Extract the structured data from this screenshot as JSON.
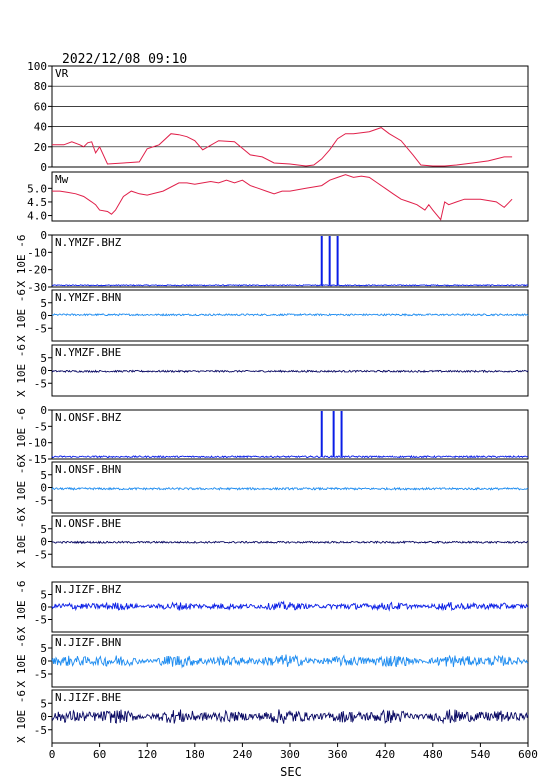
{
  "header": {
    "datetime": "2022/12/08 09:10"
  },
  "xaxis": {
    "label": "SEC",
    "range": [
      0,
      600
    ],
    "ticks": [
      0,
      60,
      120,
      180,
      240,
      300,
      360,
      420,
      480,
      540,
      600
    ]
  },
  "colors": {
    "vr_mw": "#e0204a",
    "bhz": "#0a1ee6",
    "bhn": "#1e8cf0",
    "bhe": "#0a0a64",
    "frame": "#000000"
  },
  "chart_data": [
    {
      "type": "line",
      "id": "vr",
      "label": "VR",
      "ylim": [
        0,
        100
      ],
      "yticks": [
        0,
        20,
        40,
        60,
        80,
        100
      ],
      "grid": true,
      "x": [
        0,
        15,
        25,
        35,
        40,
        45,
        50,
        55,
        60,
        70,
        90,
        110,
        120,
        135,
        150,
        160,
        170,
        180,
        190,
        210,
        230,
        250,
        265,
        280,
        300,
        320,
        330,
        340,
        350,
        360,
        370,
        380,
        400,
        415,
        425,
        440,
        455,
        465,
        480,
        495,
        510,
        530,
        550,
        570,
        580
      ],
      "y": [
        22,
        22,
        25,
        22,
        20,
        24,
        25,
        14,
        20,
        3,
        4,
        5,
        18,
        22,
        33,
        32,
        30,
        26,
        17,
        26,
        25,
        12,
        10,
        4,
        3,
        1,
        2,
        8,
        17,
        28,
        33,
        33,
        35,
        39,
        33,
        26,
        12,
        2,
        1,
        1,
        2,
        4,
        6,
        10,
        10
      ]
    },
    {
      "type": "line",
      "id": "mw",
      "label": "Mw",
      "ylim": [
        3.8,
        5.6
      ],
      "yticks": [
        4.0,
        4.5,
        5.0
      ],
      "x": [
        0,
        10,
        20,
        30,
        40,
        50,
        55,
        60,
        70,
        75,
        80,
        90,
        100,
        110,
        120,
        140,
        160,
        170,
        180,
        190,
        200,
        210,
        220,
        230,
        240,
        250,
        260,
        270,
        280,
        290,
        300,
        320,
        340,
        350,
        360,
        370,
        380,
        390,
        400,
        410,
        420,
        430,
        440,
        450,
        460,
        470,
        475,
        480,
        490,
        495,
        500,
        510,
        520,
        540,
        560,
        570,
        580
      ],
      "y": [
        4.9,
        4.9,
        4.85,
        4.8,
        4.7,
        4.5,
        4.4,
        4.2,
        4.15,
        4.05,
        4.2,
        4.7,
        4.9,
        4.8,
        4.75,
        4.9,
        5.2,
        5.2,
        5.15,
        5.2,
        5.25,
        5.2,
        5.3,
        5.2,
        5.3,
        5.1,
        5.0,
        4.9,
        4.8,
        4.9,
        4.9,
        5.0,
        5.1,
        5.3,
        5.4,
        5.5,
        5.4,
        5.45,
        5.4,
        5.2,
        5.0,
        4.8,
        4.6,
        4.5,
        4.4,
        4.2,
        4.4,
        4.2,
        3.85,
        4.5,
        4.4,
        4.5,
        4.6,
        4.6,
        4.5,
        4.3,
        4.6
      ]
    },
    {
      "type": "line",
      "id": "ymzf-bhz",
      "station": "N.YMZF.BHZ",
      "ylabel": "X 10E -6",
      "ylim": [
        -30,
        0
      ],
      "yticks": [
        0,
        -10,
        -20,
        -30
      ],
      "baseline": -29,
      "amplitude": 0.3,
      "color_key": "bhz",
      "spikes_sec": [
        340,
        350,
        360
      ]
    },
    {
      "type": "line",
      "id": "ymzf-bhn",
      "station": "N.YMZF.BHN",
      "ylabel": "X 10E -6",
      "ylim": [
        -10,
        10
      ],
      "yticks": [
        5,
        0,
        -5
      ],
      "baseline": 0.3,
      "amplitude": 0.35,
      "color_key": "bhn"
    },
    {
      "type": "line",
      "id": "ymzf-bhe",
      "station": "N.YMZF.BHE",
      "ylabel": "X 10E -6",
      "ylim": [
        -10,
        10
      ],
      "yticks": [
        5,
        0,
        -5
      ],
      "baseline": -0.3,
      "amplitude": 0.35,
      "color_key": "bhe"
    },
    {
      "type": "line",
      "id": "onsf-bhz",
      "station": "N.ONSF.BHZ",
      "ylabel": "X 10E -6",
      "ylim": [
        -15,
        0
      ],
      "yticks": [
        0,
        -5,
        -10,
        -15
      ],
      "baseline": -14.3,
      "amplitude": 0.25,
      "color_key": "bhz",
      "spikes_sec": [
        340,
        355,
        365
      ]
    },
    {
      "type": "line",
      "id": "onsf-bhn",
      "station": "N.ONSF.BHN",
      "ylabel": "X 10E -6",
      "ylim": [
        -10,
        10
      ],
      "yticks": [
        5,
        0,
        -5
      ],
      "baseline": -0.5,
      "amplitude": 0.4,
      "color_key": "bhn"
    },
    {
      "type": "line",
      "id": "onsf-bhe",
      "station": "N.ONSF.BHE",
      "ylabel": "X 10E -6",
      "ylim": [
        -10,
        10
      ],
      "yticks": [
        5,
        0,
        -5
      ],
      "baseline": -0.3,
      "amplitude": 0.35,
      "color_key": "bhe"
    },
    {
      "type": "line",
      "id": "jizf-bhz",
      "station": "N.JIZF.BHZ",
      "ylabel": "X 10E -6",
      "ylim": [
        -10,
        10
      ],
      "yticks": [
        5,
        0,
        -5
      ],
      "baseline": 0.3,
      "amplitude": 1.1,
      "color_key": "bhz"
    },
    {
      "type": "line",
      "id": "jizf-bhn",
      "station": "N.JIZF.BHN",
      "ylabel": "X 10E -6",
      "ylim": [
        -10,
        10
      ],
      "yticks": [
        5,
        0,
        -5
      ],
      "baseline": 0.0,
      "amplitude": 1.6,
      "color_key": "bhn"
    },
    {
      "type": "line",
      "id": "jizf-bhe",
      "station": "N.JIZF.BHE",
      "ylabel": "X 10E -6",
      "ylim": [
        -10,
        10
      ],
      "yticks": [
        5,
        0,
        -5
      ],
      "baseline": 0.0,
      "amplitude": 1.8,
      "color_key": "bhe"
    }
  ]
}
